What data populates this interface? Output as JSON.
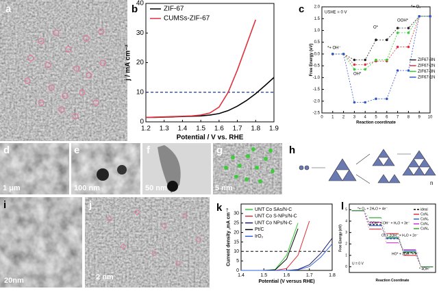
{
  "panels": [
    {
      "label": "a"
    },
    {
      "label": "d",
      "scale_bar": "1 μm"
    },
    {
      "label": "e",
      "scale_bar": "100 nm"
    },
    {
      "label": "f",
      "scale_bar": "50 nm"
    },
    {
      "label": "g",
      "scale_bar": "5 nm"
    },
    {
      "label": "h",
      "note": "n"
    },
    {
      "label": "i",
      "scale_bar": "20nm"
    },
    {
      "label": "j",
      "scale_bar": "2 nm"
    }
  ],
  "chart_data": [
    {
      "type": "line",
      "label": "b",
      "xlabel": "Potential / V vs. RHE",
      "ylabel": "j / mA cm⁻²",
      "x": [
        1.2,
        1.25,
        1.3,
        1.35,
        1.4,
        1.45,
        1.5,
        1.55,
        1.6,
        1.65,
        1.7,
        1.75,
        1.8,
        1.85,
        1.9
      ],
      "xlim": [
        1.2,
        1.9
      ],
      "xticks": [
        1.2,
        1.3,
        1.4,
        1.5,
        1.6,
        1.7,
        1.8,
        1.9
      ],
      "ylim": [
        0,
        40
      ],
      "yticks": [
        0,
        10,
        20,
        30,
        40
      ],
      "hline": 10,
      "legend": "upper left",
      "series": [
        {
          "name": "ZIF-67",
          "color": "#000000",
          "values": [
            1.5,
            1.5,
            1.6,
            1.7,
            1.8,
            1.9,
            2.0,
            2.3,
            2.8,
            3.8,
            5.3,
            7.2,
            9.5,
            12.2,
            15.0
          ]
        },
        {
          "name": "CUMSs-ZIF-67",
          "color": "#e0303c",
          "values": [
            1.5,
            1.6,
            1.7,
            1.8,
            1.9,
            2.0,
            2.3,
            3.0,
            5.0,
            10.0,
            17.5,
            26,
            34.5,
            null,
            null
          ]
        }
      ]
    },
    {
      "type": "line",
      "label": "c",
      "xlabel": "Reaction coordinate",
      "ylabel": "Free Energy (eV)",
      "markers": true,
      "x": [
        1,
        2,
        3,
        4,
        5,
        6,
        7,
        8,
        9,
        10
      ],
      "xlim": [
        0,
        10
      ],
      "xticks": [
        0,
        1,
        2,
        3,
        4,
        5,
        6,
        7,
        8,
        9,
        10
      ],
      "ylim": [
        -2.5,
        2.0
      ],
      "yticks": [
        -2.5,
        {
          "value": -2.0,
          "label": "-2.0"
        },
        -1.5,
        {
          "value": -1.0,
          "label": "-1.0"
        },
        -0.5,
        {
          "value": 0,
          "label": "0.0"
        },
        0.5,
        {
          "value": 1.0,
          "label": "1.0"
        },
        1.5,
        {
          "value": 2.0,
          "label": "2.0"
        }
      ],
      "legend": "right",
      "annotations": [
        "*+ OH⁻",
        "OH*",
        "O*",
        "OOH*",
        "*+ O₂",
        "USHE = 0 V"
      ],
      "series": [
        {
          "name": "ZIF67-8N",
          "color": "#222222",
          "values": [
            0,
            0,
            -0.25,
            -0.25,
            0.6,
            0.6,
            1.1,
            1.1,
            1.6,
            1.6
          ]
        },
        {
          "name": "ZIF67-2N",
          "color": "#e0303c",
          "values": [
            0,
            0,
            -0.45,
            -0.45,
            -0.3,
            -0.3,
            0.3,
            0.3,
            1.6,
            1.6
          ]
        },
        {
          "name": "ZIF67-3N",
          "color": "#33cc33",
          "values": [
            0,
            0,
            -0.65,
            -0.65,
            -0.25,
            -0.25,
            0.9,
            0.9,
            1.6,
            1.6
          ]
        },
        {
          "name": "ZIF67-1N",
          "color": "#3355cc",
          "values": [
            0,
            0,
            -2.05,
            -2.05,
            -1.9,
            -1.9,
            -0.7,
            -0.7,
            1.6,
            1.6
          ]
        }
      ]
    },
    {
      "type": "line",
      "label": "k",
      "xlabel": "Potential (V versus RHE)",
      "ylabel": "Current density ,mA cm⁻²",
      "x": [
        1.4,
        1.45,
        1.5,
        1.55,
        1.6,
        1.65,
        1.7,
        1.75,
        1.8
      ],
      "xlim": [
        1.4,
        1.8
      ],
      "xticks": [
        1.4,
        1.5,
        1.6,
        1.7,
        1.8
      ],
      "ylim": [
        0,
        35
      ],
      "yticks": [
        0,
        5,
        10,
        15,
        20,
        25,
        30
      ],
      "hline": 10,
      "legend": "upper left",
      "series": [
        {
          "name": "UNT Co SAs/N-C",
          "color": "#33cc33",
          "values": [
            0,
            0,
            0,
            0.5,
            8,
            25,
            null,
            null,
            null
          ]
        },
        {
          "name": "UNT Co S-NPs/N-C",
          "color": "#e0303c",
          "values": [
            0,
            0,
            0,
            0,
            1,
            8,
            26,
            null,
            null
          ]
        },
        {
          "name": "UNT Co NPs/N-C",
          "color": "#1a1a6e",
          "values": [
            0,
            0,
            0,
            0,
            0,
            0.5,
            3,
            9,
            17
          ]
        },
        {
          "name": "Pt/C",
          "color": "#000000",
          "values": [
            0,
            0,
            0,
            0.3,
            6,
            22,
            null,
            null,
            null
          ]
        },
        {
          "name": "IrO₂",
          "color": "#3060e0",
          "values": [
            0,
            0,
            0,
            0,
            0,
            0.3,
            2,
            7,
            14
          ]
        }
      ]
    },
    {
      "type": "step",
      "label": "l",
      "xlabel": "Reaction Coordinate",
      "ylabel": "Free Energy (eV)",
      "ylim": [
        -0.5,
        5.5
      ],
      "yticks": [
        0,
        1,
        2,
        3,
        4,
        5
      ],
      "legend": "upper right",
      "annotations": [
        "*+ O₂ + 2H₂O + 4e⁻",
        "OOH* + OH⁻ + H₂O + 3e⁻",
        "O* + 2OH⁻ + H₂O + 2e⁻",
        "HO* + 3OH⁻ + e⁻",
        "* 4OH⁻",
        "U = 0 V"
      ],
      "series": [
        {
          "name": "ideal",
          "color": "#000000",
          "dashed": true,
          "values": [
            4.92,
            3.69,
            2.46,
            1.23,
            0
          ]
        },
        {
          "name": "CoN₁",
          "color": "#e0303c",
          "values": [
            4.92,
            3.3,
            2.9,
            1.0,
            0
          ]
        },
        {
          "name": "CoN₂",
          "color": "#3060e0",
          "values": [
            4.92,
            3.6,
            2.5,
            1.4,
            0
          ]
        },
        {
          "name": "CoN₃",
          "color": "#cc33cc",
          "values": [
            4.92,
            3.9,
            2.1,
            1.5,
            0
          ]
        },
        {
          "name": "CoN₄",
          "color": "#33aa33",
          "values": [
            4.92,
            4.3,
            2.6,
            1.3,
            0
          ]
        }
      ]
    }
  ]
}
